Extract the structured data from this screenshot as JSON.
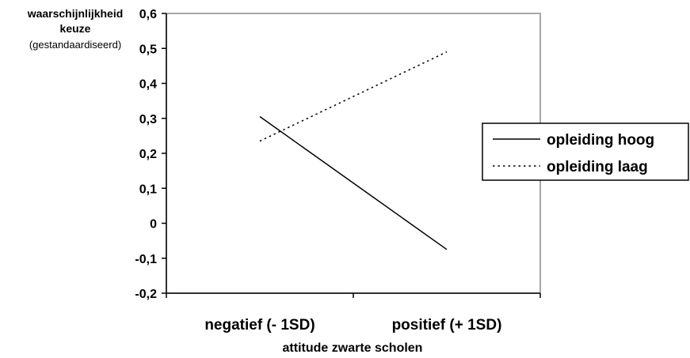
{
  "chart_data": {
    "type": "line",
    "ylabel_lines": [
      "waarschijnlijkheid",
      "keuze",
      "(gestandaardiseerd)"
    ],
    "xlabel": "attitude zwarte scholen",
    "categories": [
      "negatief  (- 1SD)",
      "positief (+ 1SD)"
    ],
    "ylim": [
      -0.2,
      0.6
    ],
    "yticks": [
      0.6,
      0.5,
      0.4,
      0.3,
      0.2,
      0.1,
      0,
      -0.1,
      -0.2
    ],
    "ytick_labels": [
      "0,6",
      "0,5",
      "0,4",
      "0,3",
      "0,2",
      "0,1",
      "0",
      "-0,1",
      "-0,2"
    ],
    "grid": false,
    "legend_position": "right",
    "series": [
      {
        "name": "opleiding hoog",
        "values": [
          0.305,
          -0.075
        ],
        "style": "solid"
      },
      {
        "name": "opleiding laag",
        "values": [
          0.235,
          0.49
        ],
        "style": "dotted"
      }
    ]
  }
}
